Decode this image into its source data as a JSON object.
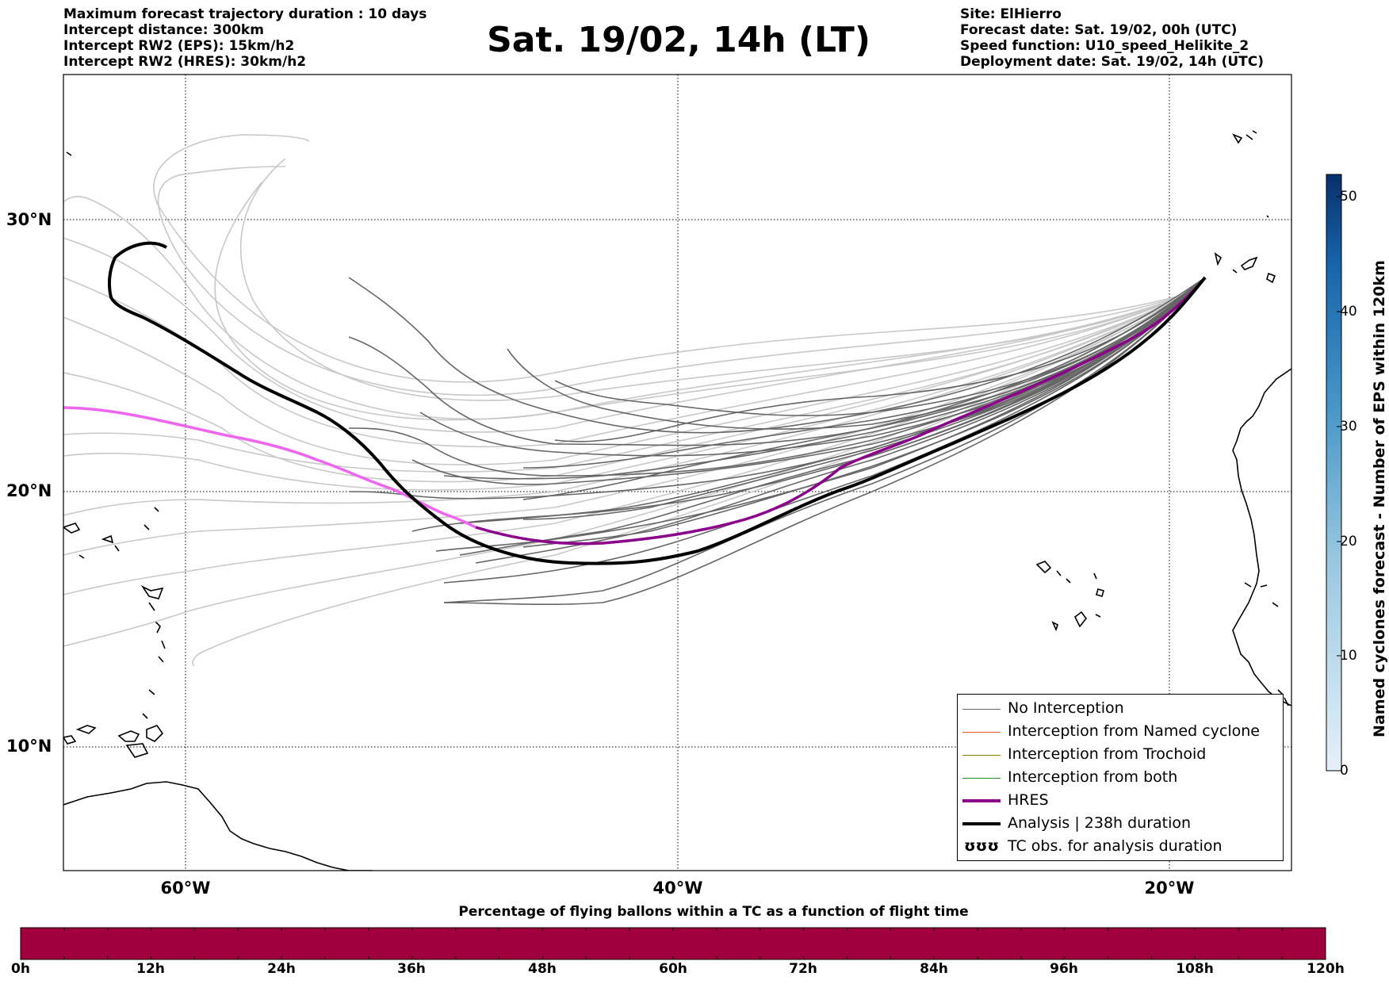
{
  "header": {
    "left_lines": [
      "Maximum forecast trajectory duration : 10 days",
      "Intercept distance: 300km",
      "Intercept RW2 (EPS):  15km/h2",
      "Intercept RW2 (HRES): 30km/h2"
    ],
    "title": "Sat. 19/02, 14h (LT)",
    "right_lines": [
      "Site: ElHierro",
      "Forecast date: Sat. 19/02, 00h (UTC)",
      "Speed function: U10_speed_Helikite_2",
      "Deployment date: Sat. 19/02, 14h (UTC)"
    ]
  },
  "map": {
    "lon_range": [
      -65,
      -15
    ],
    "lat_range": [
      5.5,
      35
    ],
    "lat_labels": [
      "30°N",
      "20°N",
      "10°N"
    ],
    "lon_labels": [
      "60°W",
      "40°W",
      "20°W"
    ],
    "gridline_style": "dotted"
  },
  "trajectories": {
    "eps_color": "#666666",
    "eps_faded_color": "#c8c8c8",
    "hres_color": "#8b008b",
    "hres_faded_color": "#ee66ee",
    "analysis_color": "#000000"
  },
  "legend": {
    "placement": "lower-right",
    "items": [
      {
        "label": "No Interception",
        "color": "#666666",
        "style": "thin"
      },
      {
        "label": "Interception from Named cyclone",
        "color": "#e8561e",
        "style": "thin"
      },
      {
        "label": "Interception from Trochoid",
        "color": "#808000",
        "style": "thin"
      },
      {
        "label": "Interception from both",
        "color": "#228b22",
        "style": "thin"
      },
      {
        "label": "HRES",
        "color": "#8b008b",
        "style": "thick"
      },
      {
        "label": "Analysis | 238h duration",
        "color": "#000000",
        "style": "thick"
      },
      {
        "label": "TC obs. for analysis duration",
        "color": "#000000",
        "style": "symbol",
        "symbol": "ʊʊʊ"
      }
    ]
  },
  "colorbar": {
    "title": "Named cyclones forecast - Number of EPS within 120km",
    "range": [
      0,
      52
    ],
    "ticks": [
      "0",
      "10",
      "20",
      "30",
      "40",
      "50"
    ],
    "color_low": "#e6f0fa",
    "color_high": "#08306b"
  },
  "percentage_bar": {
    "title": "Percentage of flying ballons within a TC as a function of flight time",
    "color": "#a0003c",
    "ticks": [
      "0h",
      "12h",
      "24h",
      "36h",
      "48h",
      "60h",
      "72h",
      "84h",
      "96h",
      "108h",
      "120h"
    ]
  }
}
